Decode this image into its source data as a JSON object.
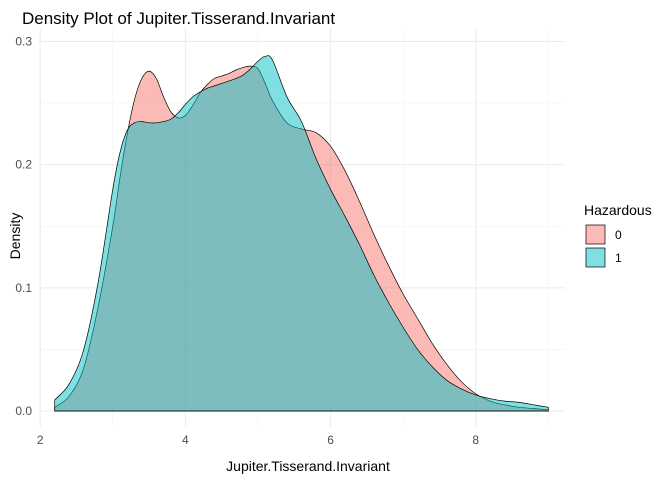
{
  "chart_data": {
    "type": "area",
    "title": "Density Plot of Jupiter.Tisserand.Invariant",
    "xlabel": "Jupiter.Tisserand.Invariant",
    "ylabel": "Density",
    "xlim": [
      2.2,
      9.0
    ],
    "ylim": [
      0,
      0.3
    ],
    "x_ticks": [
      2,
      4,
      6,
      8
    ],
    "y_ticks": [
      0.0,
      0.1,
      0.2,
      0.3
    ],
    "x_tick_labels": [
      "2",
      "4",
      "6",
      "8"
    ],
    "y_tick_labels": [
      "0.0",
      "0.1",
      "0.2",
      "0.3"
    ],
    "grid": true,
    "legend": {
      "title": "Hazardous",
      "position": "right"
    },
    "series": [
      {
        "name": "0",
        "color": "#F8766D",
        "x": [
          2.2,
          2.4,
          2.6,
          2.8,
          3.0,
          3.1,
          3.2,
          3.3,
          3.4,
          3.5,
          3.6,
          3.7,
          3.8,
          3.9,
          4.0,
          4.1,
          4.2,
          4.3,
          4.4,
          4.5,
          4.6,
          4.7,
          4.8,
          4.9,
          5.0,
          5.1,
          5.2,
          5.4,
          5.6,
          5.8,
          6.0,
          6.2,
          6.4,
          6.6,
          6.8,
          7.0,
          7.2,
          7.4,
          7.6,
          7.8,
          8.0,
          8.2,
          8.4,
          8.6,
          8.8,
          9.0
        ],
        "y": [
          0.003,
          0.012,
          0.035,
          0.085,
          0.15,
          0.19,
          0.225,
          0.253,
          0.27,
          0.276,
          0.27,
          0.255,
          0.243,
          0.238,
          0.24,
          0.248,
          0.258,
          0.265,
          0.27,
          0.272,
          0.274,
          0.277,
          0.279,
          0.28,
          0.278,
          0.266,
          0.252,
          0.234,
          0.229,
          0.226,
          0.215,
          0.195,
          0.17,
          0.143,
          0.118,
          0.095,
          0.075,
          0.055,
          0.038,
          0.024,
          0.014,
          0.008,
          0.005,
          0.003,
          0.002,
          0.001
        ]
      },
      {
        "name": "1",
        "color": "#00BFC4",
        "x": [
          2.2,
          2.4,
          2.6,
          2.8,
          3.0,
          3.1,
          3.2,
          3.3,
          3.4,
          3.5,
          3.6,
          3.7,
          3.8,
          3.9,
          4.0,
          4.1,
          4.2,
          4.3,
          4.4,
          4.5,
          4.6,
          4.7,
          4.8,
          4.9,
          5.0,
          5.1,
          5.2,
          5.4,
          5.6,
          5.8,
          6.0,
          6.2,
          6.4,
          6.6,
          6.8,
          7.0,
          7.2,
          7.4,
          7.6,
          7.8,
          8.0,
          8.2,
          8.4,
          8.6,
          8.8,
          9.0
        ],
        "y": [
          0.009,
          0.022,
          0.05,
          0.105,
          0.18,
          0.21,
          0.228,
          0.234,
          0.235,
          0.234,
          0.234,
          0.235,
          0.237,
          0.242,
          0.249,
          0.255,
          0.259,
          0.262,
          0.264,
          0.266,
          0.268,
          0.27,
          0.273,
          0.278,
          0.284,
          0.288,
          0.285,
          0.255,
          0.235,
          0.205,
          0.18,
          0.158,
          0.135,
          0.11,
          0.088,
          0.068,
          0.05,
          0.036,
          0.025,
          0.018,
          0.013,
          0.01,
          0.008,
          0.007,
          0.005,
          0.003
        ]
      }
    ]
  }
}
